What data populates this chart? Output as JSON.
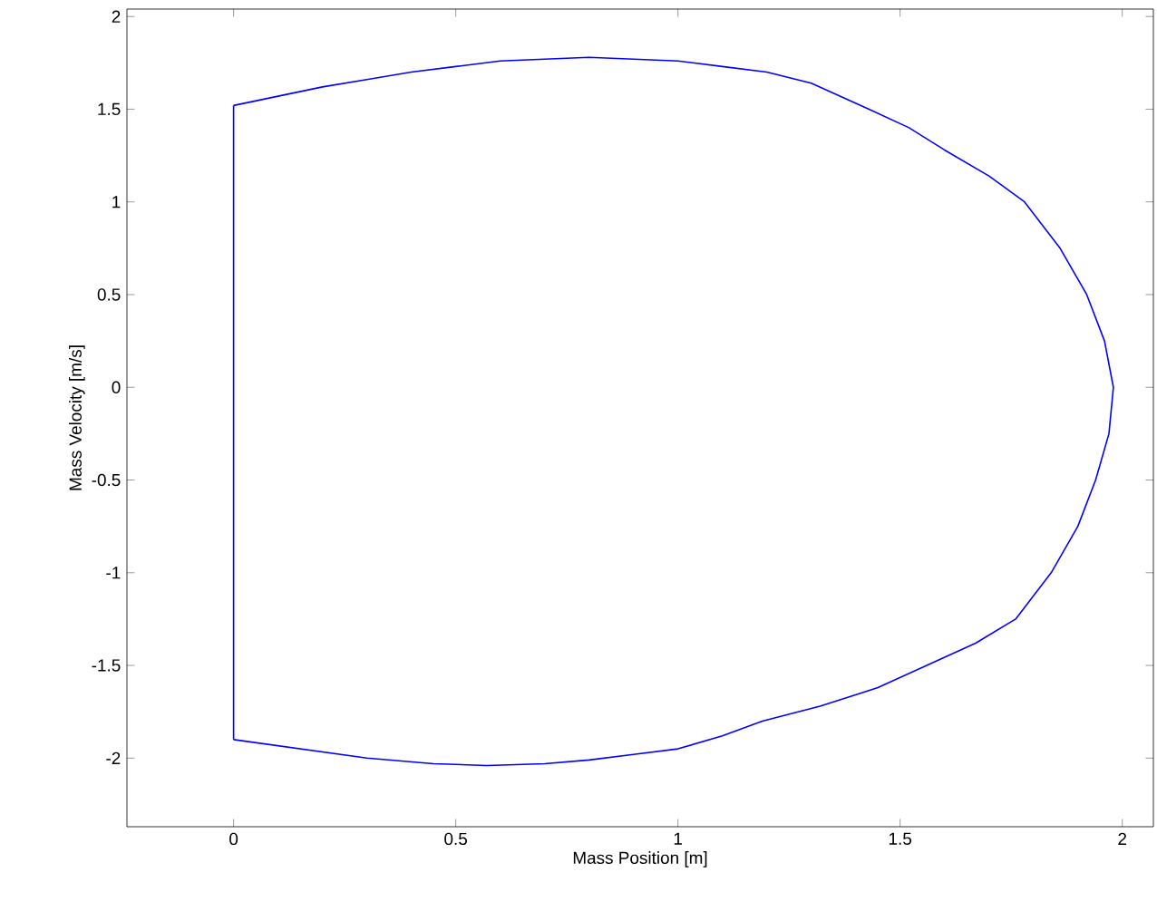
{
  "chart_data": {
    "type": "line",
    "xlabel": "Mass Position [m]",
    "ylabel": "Mass Velocity [m/s]",
    "series": [
      {
        "color": "#0000ff",
        "x": [
          0,
          0.1,
          0.2,
          0.3,
          0.4,
          0.5,
          0.6,
          0.7,
          0.8,
          0.9,
          1.0,
          1.1,
          1.2,
          1.3,
          1.43,
          1.52,
          1.6,
          1.7,
          1.78,
          1.86,
          1.92,
          1.96,
          1.98,
          1.97,
          1.94,
          1.9,
          1.84,
          1.76,
          1.67,
          1.56,
          1.45,
          1.32,
          1.19,
          1.1,
          1.0,
          0.9,
          0.8,
          0.7,
          0.57,
          0.45,
          0.3,
          0.15,
          0
        ],
        "values": [
          1.52,
          1.57,
          1.62,
          1.66,
          1.7,
          1.73,
          1.76,
          1.77,
          1.78,
          1.77,
          1.76,
          1.73,
          1.7,
          1.64,
          1.5,
          1.4,
          1.28,
          1.14,
          1.0,
          0.75,
          0.5,
          0.25,
          0,
          -0.25,
          -0.5,
          -0.75,
          -1.0,
          -1.25,
          -1.38,
          -1.5,
          -1.62,
          -1.72,
          -1.8,
          -1.88,
          -1.95,
          -1.98,
          -2.01,
          -2.03,
          -2.04,
          -2.03,
          -2.0,
          -1.95,
          -1.9
        ]
      },
      {
        "color": "#0000ff",
        "x": [
          0,
          0
        ],
        "values": [
          -1.9,
          1.52
        ]
      }
    ],
    "xlim": [
      -0.24,
      2.07
    ],
    "ylim": [
      -2.37,
      2.04
    ],
    "xticks": [
      0,
      0.5,
      1,
      1.5,
      2
    ],
    "yticks": [
      -2,
      -1.5,
      -1,
      -0.5,
      0,
      0.5,
      1,
      1.5,
      2
    ],
    "grid": false
  }
}
